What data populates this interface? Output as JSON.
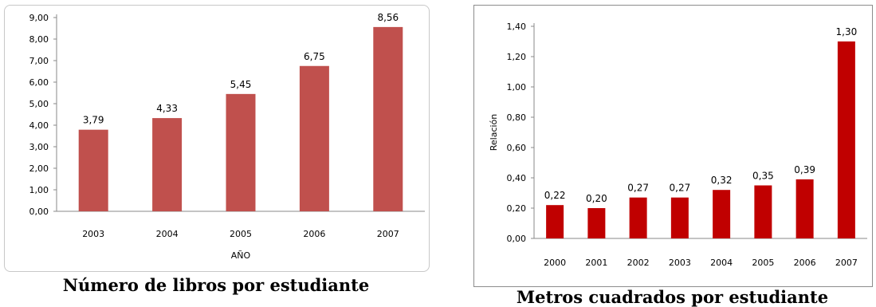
{
  "chart_data": [
    {
      "type": "bar",
      "categories": [
        "2003",
        "2004",
        "2005",
        "2006",
        "2007"
      ],
      "values": [
        3.79,
        4.33,
        5.45,
        6.75,
        8.56
      ],
      "value_labels": [
        "3,79",
        "4,33",
        "5,45",
        "6,75",
        "8,56"
      ],
      "yticks": [
        "0,00",
        "1,00",
        "2,00",
        "3,00",
        "4,00",
        "5,00",
        "6,00",
        "7,00",
        "8,00",
        "9,00"
      ],
      "ylim": [
        0,
        9
      ],
      "xlabel": "AÑO",
      "ylabel": "",
      "grid": false,
      "bar_color": "#c0504d",
      "caption": "Número de libros por estudiante"
    },
    {
      "type": "bar",
      "categories": [
        "2000",
        "2001",
        "2002",
        "2003",
        "2004",
        "2005",
        "2006",
        "2007"
      ],
      "values": [
        0.22,
        0.2,
        0.27,
        0.27,
        0.32,
        0.35,
        0.39,
        1.3
      ],
      "value_labels": [
        "0,22",
        "0,20",
        "0,27",
        "0,27",
        "0,32",
        "0,35",
        "0,39",
        "1,30"
      ],
      "yticks": [
        "0,00",
        "0,20",
        "0,40",
        "0,60",
        "0,80",
        "1,00",
        "1,20",
        "1,40"
      ],
      "ylim": [
        0,
        1.4
      ],
      "xlabel": "",
      "ylabel": "Relación",
      "grid": false,
      "bar_color": "#c00000",
      "caption": "Metros cuadrados por estudiante"
    }
  ]
}
